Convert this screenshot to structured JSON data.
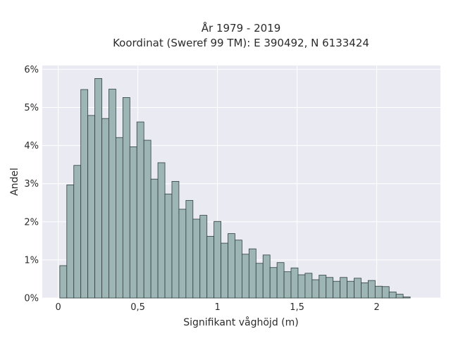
{
  "chart_data": {
    "type": "bar",
    "title_lines": [
      "År 1979 - 2019",
      "Koordinat (Sweref 99 TM): E 390492, N 6133424"
    ],
    "xlabel": "Signifikant våghöjd (m)",
    "ylabel": "Andel",
    "xlim": [
      -0.1,
      2.4
    ],
    "ylim": [
      0,
      6.1
    ],
    "x_ticks": [
      0,
      0.5,
      1,
      1.5,
      2
    ],
    "x_tick_labels": [
      "0",
      "0,5",
      "1",
      "1,5",
      "2"
    ],
    "y_ticks": [
      0,
      1,
      2,
      3,
      4,
      5,
      6
    ],
    "y_tick_labels": [
      "0%",
      "1%",
      "2%",
      "3%",
      "4%",
      "5%",
      "6%"
    ],
    "bin_width": 0.044,
    "bin_start": 0.01,
    "values": [
      0.85,
      2.97,
      3.48,
      5.47,
      4.79,
      5.76,
      4.71,
      5.48,
      4.21,
      5.26,
      3.97,
      4.62,
      4.14,
      3.12,
      3.55,
      2.73,
      3.06,
      2.33,
      2.56,
      2.07,
      2.17,
      1.62,
      2.01,
      1.44,
      1.69,
      1.52,
      1.15,
      1.29,
      0.91,
      1.13,
      0.8,
      0.93,
      0.69,
      0.79,
      0.61,
      0.65,
      0.48,
      0.6,
      0.54,
      0.44,
      0.54,
      0.44,
      0.52,
      0.4,
      0.46,
      0.31,
      0.3,
      0.16,
      0.1,
      0.03
    ],
    "grid": true,
    "colors": {
      "background": "#eaeaf2",
      "bar_fill": "#9db5b5",
      "bar_edge": "#2f3f3f",
      "grid": "#ffffff"
    }
  }
}
